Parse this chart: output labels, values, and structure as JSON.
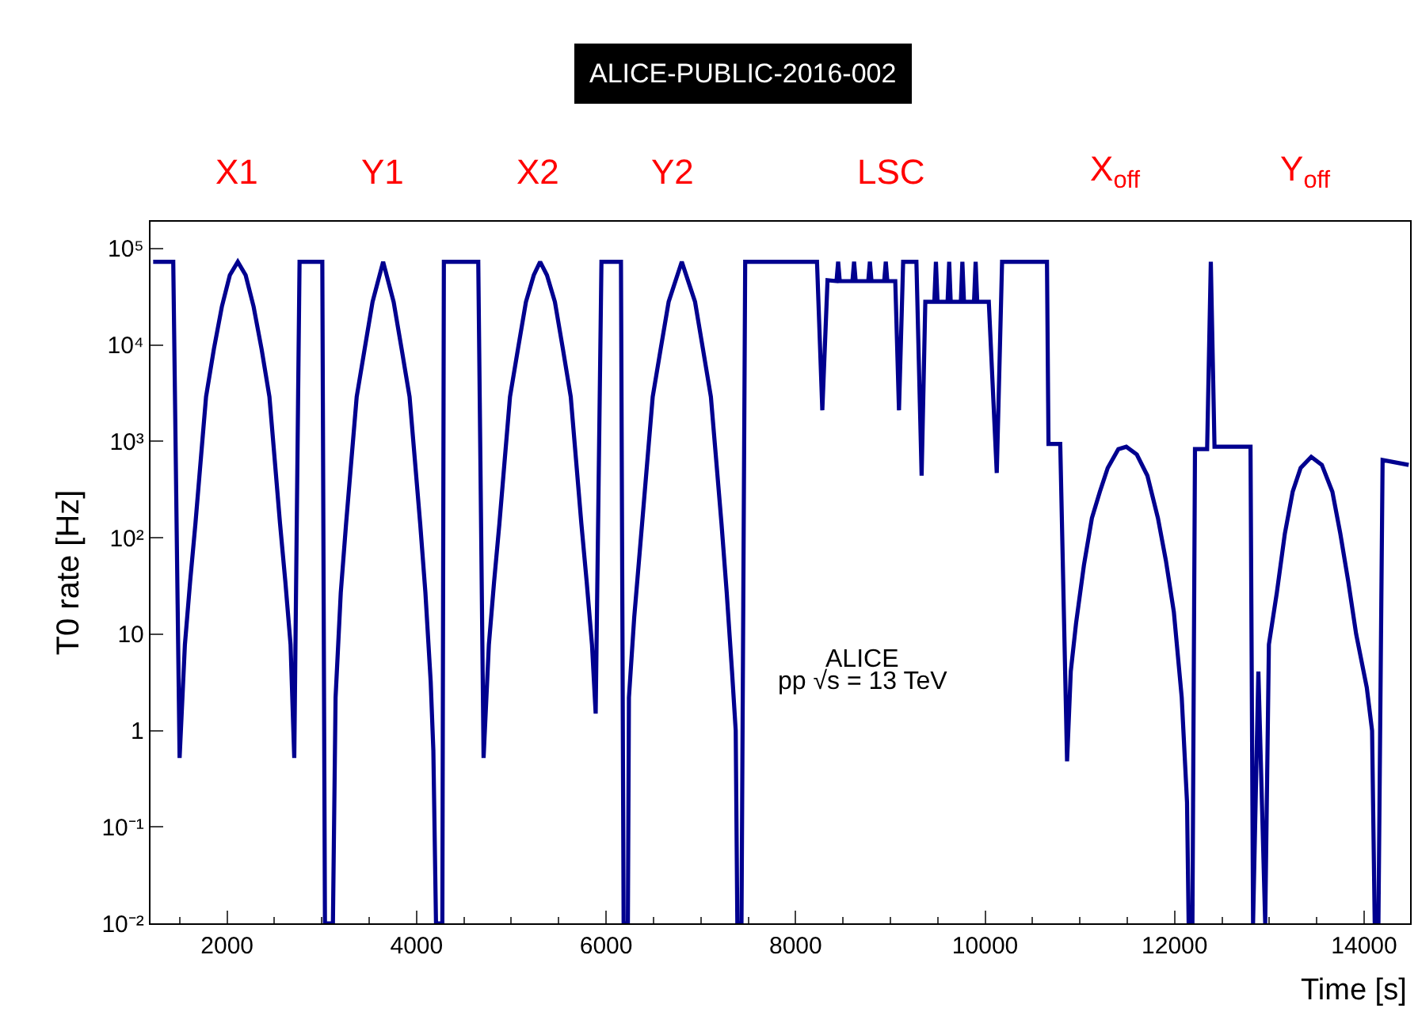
{
  "chart_data": {
    "type": "line",
    "title": "ALICE-PUBLIC-2016-002",
    "xlabel": "Time [s]",
    "ylabel": "T0 rate [Hz]",
    "xlim": [
      1192,
      14485
    ],
    "xticks": [
      2000,
      4000,
      6000,
      8000,
      10000,
      12000,
      14000
    ],
    "ylim": [
      0.01,
      190000
    ],
    "log": true,
    "yticks": [
      {
        "value": 0.01,
        "label": "10⁻²"
      },
      {
        "value": 0.1,
        "label": "10⁻¹"
      },
      {
        "value": 1,
        "label": "1"
      },
      {
        "value": 10,
        "label": "10"
      },
      {
        "value": 100,
        "label": "10²"
      },
      {
        "value": 1000,
        "label": "10³"
      },
      {
        "value": 10000,
        "label": "10⁴"
      },
      {
        "value": 100000,
        "label": "10⁵"
      }
    ],
    "marker": "none",
    "line_style": "solid",
    "series": [
      {
        "color": "#00008f",
        "x": [
          1220,
          1432,
          1499,
          1555,
          1610,
          1666,
          1722,
          1778,
          1861,
          1945,
          2029,
          2113,
          2196,
          2280,
          2364,
          2447,
          2503,
          2559,
          2615,
          2670,
          2709,
          2765,
          3005,
          3033,
          3117,
          3145,
          3200,
          3256,
          3312,
          3368,
          3452,
          3535,
          3647,
          3758,
          3842,
          3926,
          3982,
          4038,
          4093,
          4149,
          4177,
          4205,
          4272,
          4288,
          4651,
          4707,
          4763,
          4818,
          4874,
          4930,
          4986,
          5070,
          5154,
          5237,
          5304,
          5376,
          5460,
          5544,
          5627,
          5683,
          5739,
          5795,
          5851,
          5890,
          5951,
          6157,
          6185,
          6230,
          6241,
          6297,
          6380,
          6436,
          6492,
          6576,
          6660,
          6799,
          6939,
          7022,
          7106,
          7162,
          7218,
          7273,
          7329,
          7368,
          7385,
          7429,
          7468,
          8226,
          8282,
          8337,
          8432,
          8449,
          8466,
          8600,
          8617,
          8634,
          8767,
          8784,
          8801,
          8935,
          8952,
          8968,
          9052,
          9091,
          9135,
          9275,
          9330,
          9369,
          9464,
          9481,
          9498,
          9604,
          9621,
          9637,
          9744,
          9760,
          9777,
          9883,
          9900,
          9917,
          10039,
          10123,
          10179,
          10653,
          10669,
          10793,
          10865,
          10904,
          10960,
          11043,
          11127,
          11211,
          11294,
          11406,
          11490,
          11601,
          11713,
          11824,
          11908,
          11992,
          12075,
          12131,
          12148,
          12188,
          12215,
          12343,
          12382,
          12421,
          12801,
          12828,
          12884,
          12956,
          12995,
          13079,
          13163,
          13246,
          13330,
          13442,
          13554,
          13665,
          13749,
          13833,
          13916,
          14028,
          14084,
          14112,
          14151,
          14195,
          14470
        ],
        "values": [
          73000,
          73000,
          0.52,
          7.8,
          35,
          140,
          640,
          2900,
          9100,
          25000,
          53000,
          73000,
          53000,
          25000,
          9100,
          2900,
          640,
          140,
          35,
          7.8,
          0.52,
          73000,
          73000,
          0.01,
          0.01,
          2.2,
          27,
          140,
          640,
          2900,
          9100,
          28000,
          73000,
          28000,
          9100,
          2900,
          640,
          140,
          27,
          3.2,
          0.62,
          0.01,
          0.01,
          73000,
          73000,
          0.52,
          7.8,
          35,
          140,
          640,
          2900,
          9100,
          28000,
          53000,
          73000,
          53000,
          28000,
          9100,
          2900,
          640,
          140,
          35,
          7.8,
          1.5,
          73000,
          73000,
          0.01,
          0.01,
          2.2,
          15,
          140,
          640,
          2900,
          9100,
          28000,
          73000,
          28000,
          9100,
          2900,
          640,
          140,
          27,
          4.1,
          1.0,
          0.01,
          0.01,
          73000,
          73000,
          2100,
          47000,
          46000,
          73000,
          46000,
          46000,
          73000,
          46000,
          46000,
          73000,
          46000,
          46000,
          73000,
          46000,
          46000,
          2100,
          73000,
          73000,
          440,
          28000,
          28000,
          73000,
          28000,
          28000,
          73000,
          28000,
          28000,
          73000,
          28000,
          28000,
          73000,
          28000,
          28000,
          470,
          73000,
          73000,
          940,
          940,
          0.48,
          4.1,
          13,
          52,
          160,
          300,
          530,
          830,
          880,
          730,
          440,
          160,
          58,
          17,
          2.2,
          0.18,
          0.01,
          0.01,
          830,
          830,
          73000,
          880,
          880,
          0.01,
          4.1,
          0.01,
          7.8,
          27,
          110,
          300,
          530,
          690,
          570,
          300,
          110,
          35,
          10,
          2.8,
          1.0,
          0.01,
          0.01,
          640,
          570
        ]
      }
    ],
    "annotations": [
      "X1",
      "Y1",
      "X2",
      "Y2",
      "LSC",
      "X$_{off}$",
      "Y$_{off}$",
      "ALICE",
      "pp √s = 13 TeV"
    ]
  }
}
